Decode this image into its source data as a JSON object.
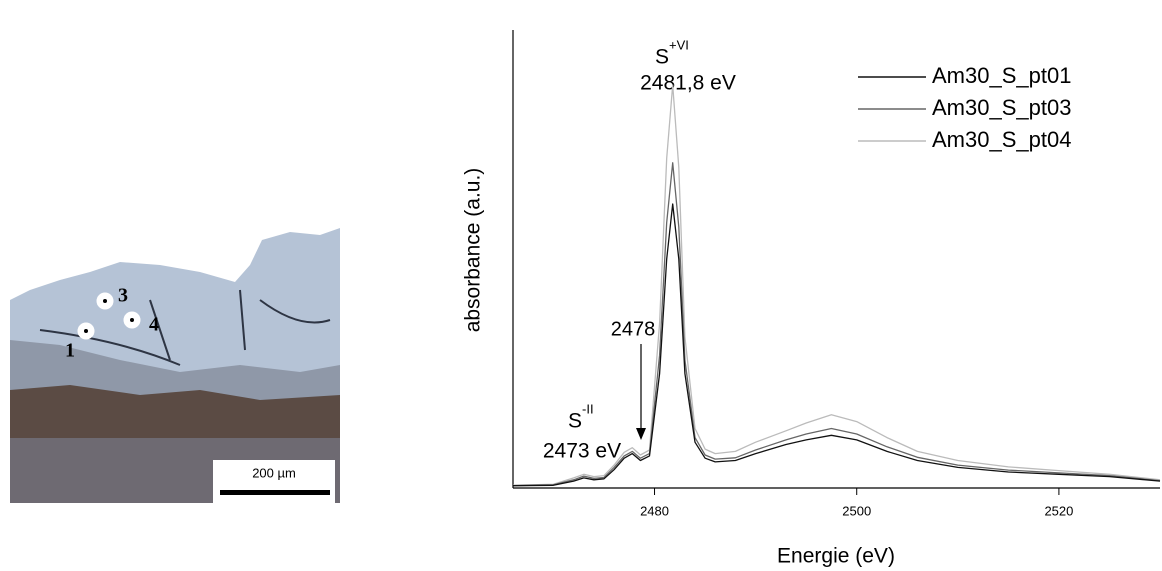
{
  "micrograph": {
    "points": [
      "1",
      "3",
      "4"
    ],
    "scale_bar": "200 µm"
  },
  "chart_data": {
    "type": "line",
    "xlabel": "Energie (eV)",
    "ylabel": "absorbance (a.u.)",
    "annotations": {
      "peak_vi_element": "S",
      "peak_vi_ox": "+VI",
      "peak_vi_energy": "2481,8 eV",
      "peak_ii_element": "S",
      "peak_ii_ox": "-II",
      "peak_ii_energy": "2473 eV",
      "shoulder": "2478"
    },
    "legend": "top-right",
    "xlim": [
      2466,
      2530
    ],
    "xticks": [
      2480,
      2500,
      2520
    ],
    "ylim": [
      0,
      1
    ],
    "x": [
      2466,
      2470,
      2472,
      2473,
      2474,
      2475,
      2476,
      2477,
      2477.8,
      2478.6,
      2479.5,
      2480.5,
      2481.2,
      2481.8,
      2482.4,
      2483,
      2484,
      2485,
      2486,
      2488,
      2490,
      2493,
      2495,
      2497.5,
      2500,
      2503,
      2506,
      2510,
      2515,
      2520,
      2525,
      2530
    ],
    "series": [
      {
        "name": "Am30_S_pt01",
        "color": "#111111",
        "values": [
          0.005,
          0.006,
          0.015,
          0.022,
          0.018,
          0.02,
          0.04,
          0.065,
          0.075,
          0.06,
          0.07,
          0.25,
          0.5,
          0.62,
          0.5,
          0.25,
          0.1,
          0.065,
          0.057,
          0.06,
          0.075,
          0.095,
          0.105,
          0.115,
          0.105,
          0.08,
          0.06,
          0.045,
          0.035,
          0.03,
          0.025,
          0.015
        ]
      },
      {
        "name": "Am30_S_pt03",
        "color": "#666666",
        "values": [
          0.005,
          0.007,
          0.018,
          0.026,
          0.021,
          0.023,
          0.045,
          0.07,
          0.08,
          0.065,
          0.075,
          0.29,
          0.58,
          0.71,
          0.57,
          0.28,
          0.11,
          0.072,
          0.063,
          0.066,
          0.083,
          0.105,
          0.118,
          0.13,
          0.118,
          0.09,
          0.067,
          0.05,
          0.039,
          0.033,
          0.027,
          0.016
        ]
      },
      {
        "name": "Am30_S_pt04",
        "color": "#bbbbbb",
        "values": [
          0.006,
          0.008,
          0.022,
          0.03,
          0.025,
          0.027,
          0.05,
          0.078,
          0.088,
          0.072,
          0.083,
          0.36,
          0.72,
          0.88,
          0.7,
          0.33,
          0.13,
          0.085,
          0.075,
          0.08,
          0.1,
          0.125,
          0.142,
          0.16,
          0.145,
          0.11,
          0.08,
          0.06,
          0.046,
          0.038,
          0.03,
          0.018
        ]
      }
    ]
  }
}
